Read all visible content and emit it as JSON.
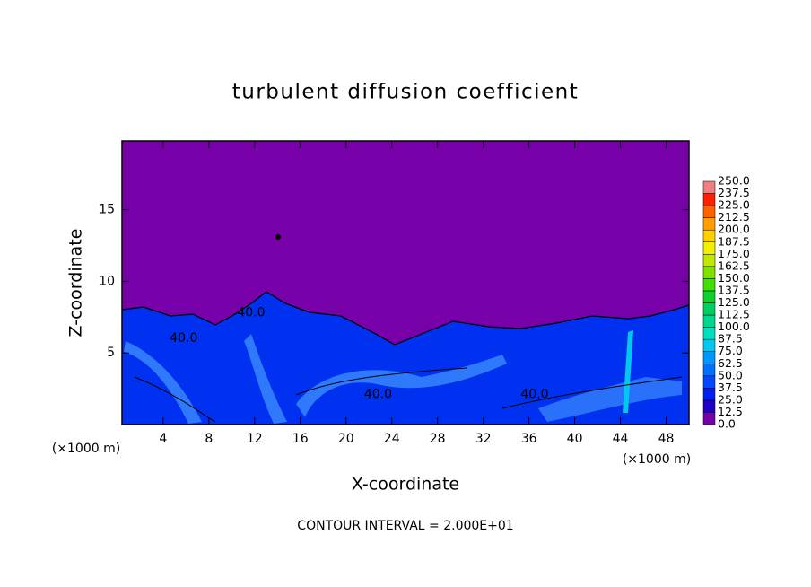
{
  "chart_data": {
    "type": "contour",
    "title": "turbulent diffusion coefficient",
    "x_label": "X-coordinate",
    "y_label": "Z-coordinate",
    "x_unit": "(×1000 m)",
    "annotation": "CONTOUR INTERVAL = 2.000E+01",
    "xlim": [
      0.4,
      50
    ],
    "ylim": [
      0,
      19.8
    ],
    "xticks": [
      4,
      8,
      12,
      16,
      20,
      24,
      28,
      32,
      36,
      40,
      44,
      48
    ],
    "yticks": [
      5,
      10,
      15
    ],
    "contour_labels": [
      {
        "text": "40.0",
        "x": 22.8,
        "z": 2.1
      },
      {
        "text": "40.0",
        "x": 36.5,
        "z": 2.1
      },
      {
        "text": "40.0",
        "x": 11.7,
        "z": 7.8
      },
      {
        "text": "40.0",
        "x": 5.8,
        "z": 6.0
      }
    ],
    "levels": [
      {
        "value": 0,
        "label": "0.0"
      },
      {
        "value": 12.5,
        "label": "12.5"
      },
      {
        "value": 25,
        "label": "25.0"
      },
      {
        "value": 37.5,
        "label": "37.5"
      },
      {
        "value": 50,
        "label": "50.0"
      },
      {
        "value": 62.5,
        "label": "62.5"
      },
      {
        "value": 75,
        "label": "75.0"
      },
      {
        "value": 87.5,
        "label": "87.5"
      },
      {
        "value": 100,
        "label": "100.0"
      },
      {
        "value": 112.5,
        "label": "112.5"
      },
      {
        "value": 125,
        "label": "125.0"
      },
      {
        "value": 137.5,
        "label": "137.5"
      },
      {
        "value": 150,
        "label": "150.0"
      },
      {
        "value": 162.5,
        "label": "162.5"
      },
      {
        "value": 175,
        "label": "175.0"
      },
      {
        "value": 187.5,
        "label": "187.5"
      },
      {
        "value": 200,
        "label": "200.0"
      },
      {
        "value": 212.5,
        "label": "212.5"
      },
      {
        "value": 225,
        "label": "225.0"
      },
      {
        "value": 237.5,
        "label": "237.5"
      },
      {
        "value": 250,
        "label": "250.0"
      }
    ],
    "level_colors": [
      "#7800a8",
      "#2000c8",
      "#0020f0",
      "#0048ff",
      "#0070ff",
      "#0098ff",
      "#00c8f0",
      "#00e0c0",
      "#00d890",
      "#00d060",
      "#10d030",
      "#40e000",
      "#80e000",
      "#c0e800",
      "#f0f000",
      "#ffd000",
      "#ffa000",
      "#ff6000",
      "#ff2000",
      "#f08080"
    ]
  }
}
